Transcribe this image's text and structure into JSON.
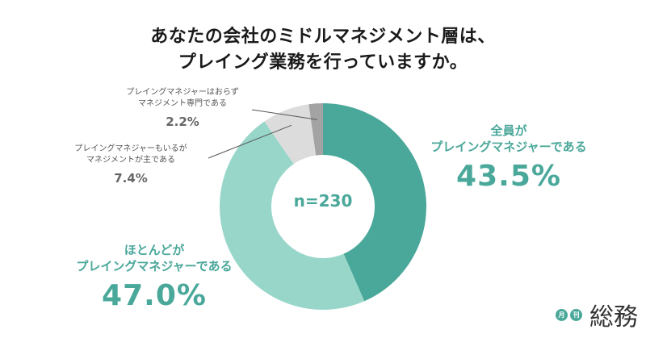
{
  "title_lines": [
    "あなたの会社のミドルマネジメント層は、",
    "プレイング業務を行っていますか。"
  ],
  "center_label": "n=230",
  "chart_data": {
    "type": "pie",
    "donut": true,
    "title": "あなたの会社のミドルマネジメント層は、プレイング業務を行っていますか。",
    "n": "n=230",
    "slices": [
      {
        "label_lines": [
          "全員が",
          "プレイングマネジャーである"
        ],
        "value": 43.5,
        "value_label": "43.5%",
        "color": "#4aa89a"
      },
      {
        "label_lines": [
          "ほとんどが",
          "プレイングマネジャーである"
        ],
        "value": 47.0,
        "value_label": "47.0%",
        "color": "#99d6ca"
      },
      {
        "label_lines": [
          "プレイングマネジャーもいるが",
          "マネジメントが主である"
        ],
        "value": 7.4,
        "value_label": "7.4%",
        "color": "#dcdcdc"
      },
      {
        "label_lines": [
          "プレイングマネジャーはおらず",
          "マネジメント専門である"
        ],
        "value": 2.2,
        "value_label": "2.2%",
        "color": "#a3a3a3"
      }
    ]
  },
  "logo": {
    "badge1": "月",
    "badge2": "刊",
    "text": "総務"
  }
}
